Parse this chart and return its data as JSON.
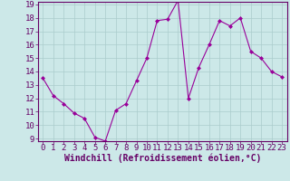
{
  "x": [
    0,
    1,
    2,
    3,
    4,
    5,
    6,
    7,
    8,
    9,
    10,
    11,
    12,
    13,
    14,
    15,
    16,
    17,
    18,
    19,
    20,
    21,
    22,
    23
  ],
  "y": [
    13.5,
    12.2,
    11.6,
    10.9,
    10.5,
    9.1,
    8.8,
    11.1,
    11.6,
    13.3,
    15.0,
    17.8,
    17.9,
    19.3,
    12.0,
    14.3,
    16.0,
    17.8,
    17.4,
    18.0,
    15.5,
    15.0,
    14.0,
    13.6
  ],
  "line_color": "#990099",
  "marker": "D",
  "marker_size": 2,
  "bg_color": "#cce8e8",
  "grid_color": "#aacccc",
  "xlabel": "Windchill (Refroidissement éolien,°C)",
  "ylim": [
    9,
    19
  ],
  "xlim": [
    -0.5,
    23.5
  ],
  "yticks": [
    9,
    10,
    11,
    12,
    13,
    14,
    15,
    16,
    17,
    18,
    19
  ],
  "xticks": [
    0,
    1,
    2,
    3,
    4,
    5,
    6,
    7,
    8,
    9,
    10,
    11,
    12,
    13,
    14,
    15,
    16,
    17,
    18,
    19,
    20,
    21,
    22,
    23
  ],
  "tick_label_size": 6.5,
  "xlabel_size": 7,
  "spine_color": "#660066",
  "tick_color": "#660066"
}
